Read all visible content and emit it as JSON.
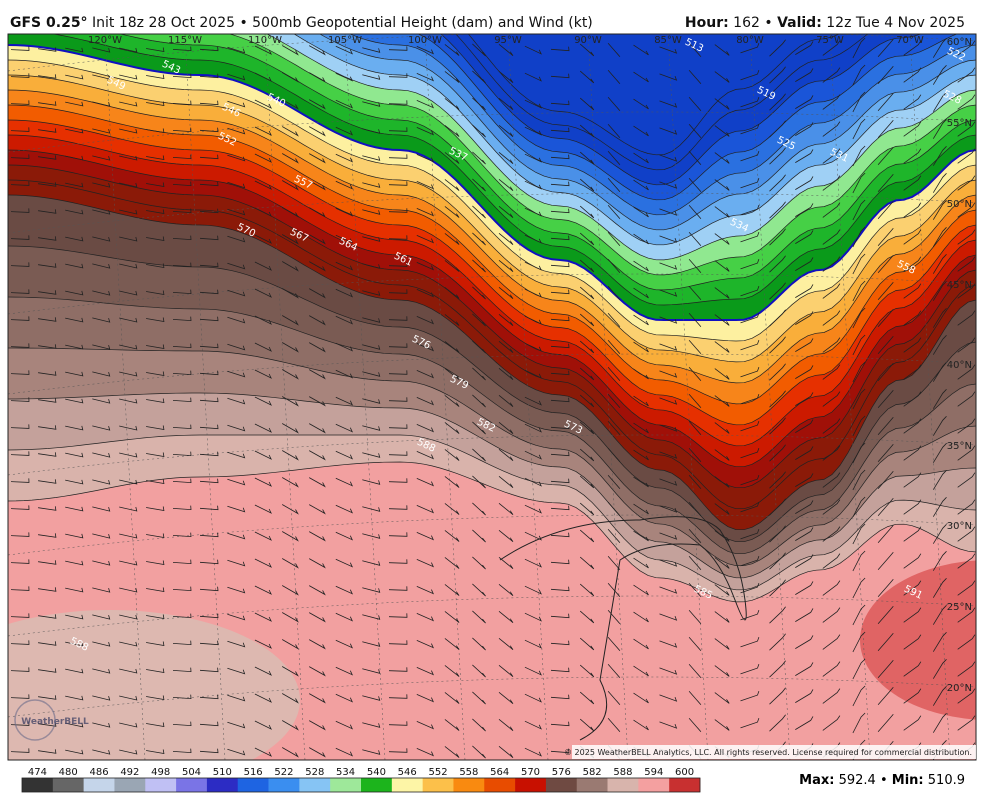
{
  "header": {
    "model": "GFS 0.25°",
    "description": "Init 18z 28 Oct 2025 • 500mb Geopotential Height (dam) and Wind (kt)",
    "hour_label": "Hour:",
    "hour": "162 •",
    "valid_label": "Valid:",
    "valid": "12z Tue 4 Nov 2025"
  },
  "map": {
    "longitudes": [
      "120°W",
      "115°W",
      "110°W",
      "105°W",
      "100°W",
      "95°W",
      "90°W",
      "85°W",
      "80°W",
      "75°W",
      "70°W"
    ],
    "latitudes": [
      "60°N",
      "55°N",
      "50°N",
      "45°N",
      "40°N",
      "35°N",
      "30°N",
      "25°N",
      "20°N"
    ],
    "contour_labels": [
      "543",
      "549",
      "540",
      "546",
      "552",
      "557",
      "570",
      "567",
      "564",
      "561",
      "576",
      "579",
      "582",
      "588",
      "573",
      "537",
      "534",
      "531",
      "528",
      "525",
      "522",
      "519",
      "513",
      "585",
      "591",
      "588",
      "558"
    ],
    "logo": "WeatherBELL",
    "copyright": "© 2025 WeatherBELL Analytics, LLC. All rights reserved. License required for commercial distribution."
  },
  "colorbar": {
    "labels": [
      "474",
      "480",
      "486",
      "492",
      "498",
      "504",
      "510",
      "516",
      "522",
      "528",
      "534",
      "540",
      "546",
      "552",
      "558",
      "564",
      "570",
      "576",
      "582",
      "588",
      "594",
      "600"
    ],
    "colors": [
      "#333333",
      "#666666",
      "#c5d5ea",
      "#9aa6b4",
      "#c0c0f4",
      "#7a74e6",
      "#2c2cc4",
      "#1e64e2",
      "#3a8ef0",
      "#86c4f4",
      "#9ee89a",
      "#1cb41c",
      "#fdf5a6",
      "#fcc04a",
      "#f98a10",
      "#e84c00",
      "#c81000",
      "#6f4a42",
      "#9a7a72",
      "#d8b4ac",
      "#f4a0a0",
      "#c83030"
    ]
  },
  "footer": {
    "max_label": "Max:",
    "max": "592.4 •",
    "min_label": "Min:",
    "min": "510.9"
  }
}
